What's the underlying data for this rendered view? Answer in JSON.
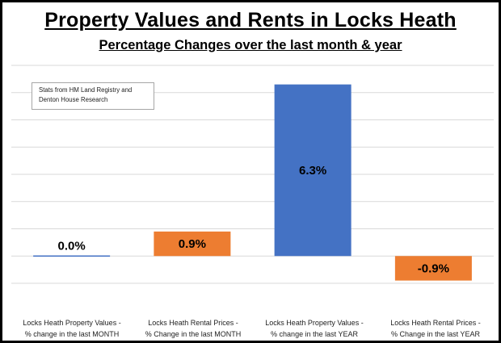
{
  "chart_data": {
    "type": "bar",
    "title": "Property Values and Rents in Locks Heath",
    "subtitle": "Percentage Changes over the last month & year",
    "annotation": [
      "Stats from HM Land Registry and",
      "Denton House Research"
    ],
    "categories": [
      [
        "Locks Heath Property Values -",
        "% change in the last MONTH"
      ],
      [
        "Locks Heath Rental Prices -",
        "% Change in the last MONTH"
      ],
      [
        "Locks Heath Property Values -",
        "% change in the last YEAR"
      ],
      [
        "Locks Heath Rental Prices -",
        "% Change in the last YEAR"
      ]
    ],
    "values": [
      0.0,
      0.9,
      6.3,
      -0.9
    ],
    "data_labels": [
      "0.0%",
      "0.9%",
      "6.3%",
      "-0.9%"
    ],
    "colors": [
      "#4472C4",
      "#ED7D31",
      "#4472C4",
      "#ED7D31"
    ],
    "ylim": [
      -1,
      7
    ],
    "grid": true,
    "xlabel": "",
    "ylabel": ""
  }
}
